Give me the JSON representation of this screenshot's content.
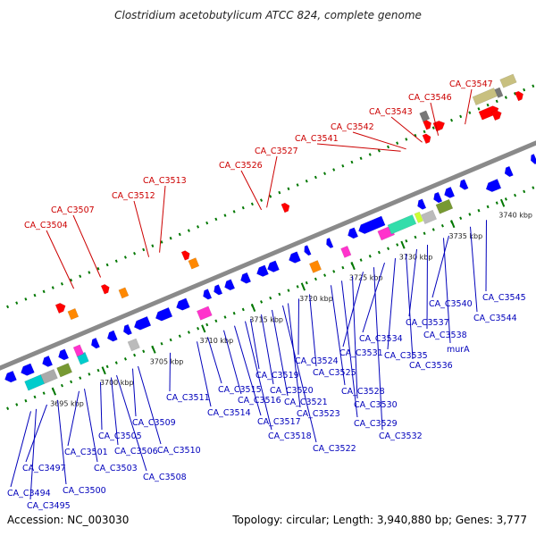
{
  "title": "Clostridium acetobutylicum ATCC 824, complete genome",
  "footer": {
    "accession": "Accession: NC_003030",
    "summary": "Topology: circular; Length: 3,940,880 bp; Genes: 3,777"
  },
  "colors": {
    "forward_label": "#cc0000",
    "reverse_label": "#0000bb",
    "backbone": "#8a8a8a",
    "forward_gene": "#ff0000",
    "reverse_gene": "#0000ff",
    "forward_rna": "#ff8800",
    "reverse_rna": "#ff33cc",
    "track_dots": "#007700"
  },
  "ticks": [
    "3695 kbp",
    "3700 kbp",
    "3705 kbp",
    "3710 kbp",
    "3715 kbp",
    "3720 kbp",
    "3725 kbp",
    "3730 kbp",
    "3735 kbp",
    "3740 kbp"
  ],
  "forward_labels": [
    "CA_C3504",
    "CA_C3507",
    "CA_C3512",
    "CA_C3513",
    "CA_C3526",
    "CA_C3527",
    "CA_C3541",
    "CA_C3542",
    "CA_C3543",
    "CA_C3546",
    "CA_C3547"
  ],
  "reverse_labels": [
    "CA_C3494",
    "CA_C3495",
    "CA_C3497",
    "CA_C3500",
    "CA_C3501",
    "CA_C3503",
    "CA_C3505",
    "CA_C3506",
    "CA_C3508",
    "CA_C3509",
    "CA_C3510",
    "CA_C3511",
    "CA_C3514",
    "CA_C3515",
    "CA_C3516",
    "CA_C3517",
    "CA_C3518",
    "CA_C3519",
    "CA_C3520",
    "CA_C3521",
    "CA_C3522",
    "CA_C3523",
    "CA_C3524",
    "CA_C3525",
    "CA_C3528",
    "CA_C3529",
    "CA_C3530",
    "CA_C3531",
    "CA_C3532",
    "CA_C3534",
    "CA_C3535",
    "CA_C3536",
    "CA_C3537",
    "CA_C3538",
    "murA",
    "CA_C3540",
    "CA_C3544",
    "CA_C3545"
  ]
}
